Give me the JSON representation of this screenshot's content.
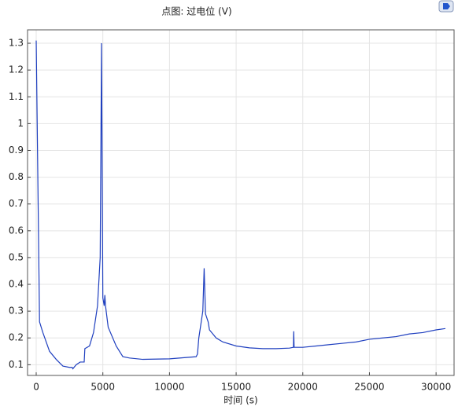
{
  "chart_data": {
    "type": "line",
    "title": "点图: 过电位 (V)",
    "xlabel": "时间 (s)",
    "x": [
      0,
      250,
      500,
      1000,
      1500,
      2000,
      2500,
      2700,
      2750,
      3000,
      3300,
      3600,
      3650,
      4000,
      4300,
      4600,
      4800,
      4900,
      5000,
      5100,
      5150,
      5200,
      5400,
      6000,
      6500,
      7000,
      8000,
      10000,
      12000,
      12100,
      12200,
      12500,
      12600,
      12700,
      12900,
      13000,
      13500,
      14000,
      15000,
      16000,
      17000,
      18000,
      19000,
      19300,
      19320,
      19350,
      20000,
      21000,
      22000,
      23000,
      24000,
      25000,
      26000,
      27000,
      28000,
      29000,
      30000,
      30700
    ],
    "values": [
      1.31,
      0.26,
      0.22,
      0.15,
      0.12,
      0.095,
      0.09,
      0.09,
      0.085,
      0.1,
      0.11,
      0.11,
      0.16,
      0.17,
      0.22,
      0.32,
      0.5,
      1.3,
      0.35,
      0.32,
      0.36,
      0.32,
      0.24,
      0.17,
      0.13,
      0.125,
      0.12,
      0.122,
      0.13,
      0.14,
      0.2,
      0.3,
      0.46,
      0.29,
      0.26,
      0.23,
      0.2,
      0.185,
      0.17,
      0.163,
      0.16,
      0.16,
      0.162,
      0.165,
      0.225,
      0.165,
      0.165,
      0.17,
      0.175,
      0.18,
      0.185,
      0.195,
      0.2,
      0.205,
      0.215,
      0.22,
      0.23,
      0.235
    ],
    "color": "#1f3fbf",
    "xlim": [
      -650,
      31350
    ],
    "ylim": [
      0.06,
      1.35
    ],
    "xticks": [
      0,
      5000,
      10000,
      15000,
      20000,
      25000,
      30000
    ],
    "yticks": [
      0.1,
      0.2,
      0.3,
      0.4,
      0.5,
      0.6,
      0.7,
      0.8,
      0.9,
      1,
      1.1,
      1.2,
      1.3
    ],
    "grid": true
  }
}
